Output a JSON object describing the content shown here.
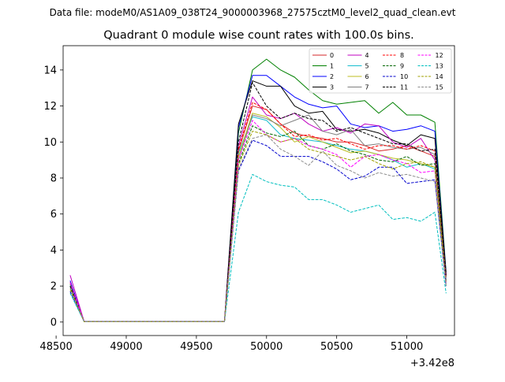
{
  "figure": {
    "suptitle": "Data file: modeM0/AS1A09_038T24_9000003968_27575cztM0_level2_quad_clean.evt"
  },
  "chart_data": {
    "type": "line",
    "title": "Quadrant 0 module wise count rates with 100.0s bins.",
    "xlabel": "",
    "ylabel": "",
    "x_offset_label": "+3.42e8",
    "xlim": [
      48550,
      51340
    ],
    "ylim": [
      -0.75,
      15.35
    ],
    "x_ticks": [
      48500,
      49000,
      49500,
      50000,
      50500,
      51000
    ],
    "x_tick_labels": [
      "48500",
      "49000",
      "49500",
      "50000",
      "50500",
      "51000"
    ],
    "y_ticks": [
      0,
      2,
      4,
      6,
      8,
      10,
      12,
      14
    ],
    "y_tick_labels": [
      "0",
      "2",
      "4",
      "6",
      "8",
      "10",
      "12",
      "14"
    ],
    "grid": false,
    "legend_position": "top-right",
    "x": [
      48600,
      48700,
      48800,
      48900,
      49000,
      49100,
      49200,
      49300,
      49400,
      49500,
      49600,
      49700,
      49800,
      49900,
      50000,
      50100,
      50200,
      50300,
      50400,
      50500,
      50600,
      50700,
      50800,
      50900,
      51000,
      51100,
      51200,
      51280
    ],
    "series": [
      {
        "name": "0",
        "color": "#d62728",
        "dashed": false,
        "values": [
          2.2,
          0.02,
          0.02,
          0.02,
          0.02,
          0.02,
          0.02,
          0.02,
          0.02,
          0.02,
          0.02,
          0.02,
          9.5,
          12.0,
          11.8,
          11.0,
          10.5,
          10.3,
          10.2,
          10.0,
          10.0,
          9.8,
          9.5,
          9.6,
          9.8,
          9.5,
          9.2,
          2.5
        ]
      },
      {
        "name": "1",
        "color": "#008000",
        "dashed": false,
        "values": [
          2.1,
          0.02,
          0.02,
          0.02,
          0.02,
          0.02,
          0.02,
          0.02,
          0.02,
          0.02,
          0.02,
          0.02,
          10.5,
          14.0,
          14.6,
          14.0,
          13.6,
          12.9,
          12.3,
          12.1,
          12.2,
          12.3,
          11.6,
          12.2,
          11.5,
          11.5,
          11.1,
          2.8
        ]
      },
      {
        "name": "2",
        "color": "#0000ff",
        "dashed": false,
        "values": [
          2.3,
          0.02,
          0.02,
          0.02,
          0.02,
          0.02,
          0.02,
          0.02,
          0.02,
          0.02,
          0.02,
          0.02,
          10.8,
          13.7,
          13.7,
          13.1,
          12.5,
          12.1,
          11.9,
          12.0,
          11.0,
          10.8,
          10.9,
          10.6,
          10.7,
          10.9,
          10.6,
          2.7
        ]
      },
      {
        "name": "3",
        "color": "#000000",
        "dashed": false,
        "values": [
          2.0,
          0.02,
          0.02,
          0.02,
          0.02,
          0.02,
          0.02,
          0.02,
          0.02,
          0.02,
          0.02,
          0.02,
          11.0,
          13.4,
          13.1,
          13.1,
          12.0,
          11.6,
          11.7,
          10.7,
          10.6,
          10.7,
          10.5,
          10.1,
          9.8,
          10.4,
          10.2,
          2.7
        ]
      },
      {
        "name": "4",
        "color": "#c000c0",
        "dashed": false,
        "values": [
          2.6,
          0.02,
          0.02,
          0.02,
          0.02,
          0.02,
          0.02,
          0.02,
          0.02,
          0.02,
          0.02,
          0.02,
          9.8,
          12.5,
          11.5,
          11.3,
          11.6,
          11.0,
          10.6,
          10.8,
          10.5,
          11.0,
          10.9,
          10.0,
          9.7,
          10.2,
          9.0,
          2.6
        ]
      },
      {
        "name": "5",
        "color": "#17becf",
        "dashed": false,
        "values": [
          2.0,
          0.02,
          0.02,
          0.02,
          0.02,
          0.02,
          0.02,
          0.02,
          0.02,
          0.02,
          0.02,
          0.02,
          9.4,
          11.4,
          11.2,
          10.4,
          10.2,
          10.1,
          10.0,
          9.8,
          9.6,
          9.5,
          9.3,
          9.0,
          8.6,
          8.8,
          8.5,
          2.3
        ]
      },
      {
        "name": "6",
        "color": "#bcbd22",
        "dashed": false,
        "values": [
          1.9,
          0.02,
          0.02,
          0.02,
          0.02,
          0.02,
          0.02,
          0.02,
          0.02,
          0.02,
          0.02,
          0.02,
          9.2,
          11.6,
          11.4,
          10.8,
          10.0,
          10.3,
          10.0,
          9.7,
          9.4,
          9.5,
          9.3,
          9.1,
          9.0,
          8.8,
          8.6,
          2.2
        ]
      },
      {
        "name": "7",
        "color": "#7f7f7f",
        "dashed": false,
        "values": [
          2.1,
          0.02,
          0.02,
          0.02,
          0.02,
          0.02,
          0.02,
          0.02,
          0.02,
          0.02,
          0.02,
          0.02,
          9.0,
          11.5,
          11.3,
          10.9,
          11.2,
          11.5,
          10.6,
          10.4,
          10.7,
          9.8,
          9.9,
          9.7,
          9.6,
          9.7,
          9.3,
          2.4
        ]
      },
      {
        "name": "8",
        "color": "#ff0000",
        "dashed": true,
        "values": [
          2.2,
          0.02,
          0.02,
          0.02,
          0.02,
          0.02,
          0.02,
          0.02,
          0.02,
          0.02,
          0.02,
          0.02,
          9.6,
          12.2,
          11.8,
          11.0,
          10.3,
          10.4,
          10.1,
          10.2,
          9.9,
          9.6,
          9.8,
          9.8,
          9.6,
          9.8,
          9.5,
          2.5
        ]
      },
      {
        "name": "9",
        "color": "#006400",
        "dashed": true,
        "values": [
          2.0,
          0.02,
          0.02,
          0.02,
          0.02,
          0.02,
          0.02,
          0.02,
          0.02,
          0.02,
          0.02,
          0.02,
          8.8,
          10.9,
          10.5,
          10.3,
          10.6,
          9.8,
          9.6,
          9.9,
          9.5,
          9.3,
          9.0,
          8.9,
          9.2,
          8.7,
          8.8,
          2.3
        ]
      },
      {
        "name": "10",
        "color": "#0000cd",
        "dashed": true,
        "values": [
          1.7,
          0.02,
          0.02,
          0.02,
          0.02,
          0.02,
          0.02,
          0.02,
          0.02,
          0.02,
          0.02,
          0.02,
          8.4,
          10.1,
          9.8,
          9.2,
          9.2,
          9.2,
          8.9,
          8.5,
          7.9,
          8.1,
          8.6,
          8.6,
          7.7,
          7.8,
          7.9,
          2.0
        ]
      },
      {
        "name": "11",
        "color": "#000000",
        "dashed": true,
        "values": [
          2.0,
          0.02,
          0.02,
          0.02,
          0.02,
          0.02,
          0.02,
          0.02,
          0.02,
          0.02,
          0.02,
          0.02,
          10.0,
          13.3,
          12.0,
          11.3,
          11.6,
          11.3,
          11.2,
          10.6,
          10.8,
          10.5,
          10.2,
          9.9,
          9.9,
          9.5,
          9.6,
          2.6
        ]
      },
      {
        "name": "12",
        "color": "#ff00ff",
        "dashed": true,
        "values": [
          2.2,
          0.02,
          0.02,
          0.02,
          0.02,
          0.02,
          0.02,
          0.02,
          0.02,
          0.02,
          0.02,
          0.02,
          9.0,
          11.2,
          10.4,
          10.0,
          10.2,
          9.8,
          9.6,
          9.3,
          8.6,
          9.2,
          9.3,
          9.0,
          8.8,
          8.3,
          8.4,
          2.2
        ]
      },
      {
        "name": "13",
        "color": "#00bfbf",
        "dashed": true,
        "values": [
          1.6,
          0.02,
          0.02,
          0.02,
          0.02,
          0.02,
          0.02,
          0.02,
          0.02,
          0.02,
          0.02,
          0.02,
          6.1,
          8.2,
          7.8,
          7.6,
          7.5,
          6.8,
          6.8,
          6.5,
          6.1,
          6.3,
          6.5,
          5.7,
          5.8,
          5.6,
          6.1,
          1.6
        ]
      },
      {
        "name": "14",
        "color": "#a0a000",
        "dashed": true,
        "values": [
          1.8,
          0.02,
          0.02,
          0.02,
          0.02,
          0.02,
          0.02,
          0.02,
          0.02,
          0.02,
          0.02,
          0.02,
          8.7,
          10.6,
          10.4,
          10.0,
          10.2,
          9.6,
          9.4,
          9.2,
          9.0,
          9.2,
          8.8,
          8.5,
          8.8,
          8.9,
          8.6,
          2.1
        ]
      },
      {
        "name": "15",
        "color": "#8c8c8c",
        "dashed": true,
        "values": [
          1.9,
          0.02,
          0.02,
          0.02,
          0.02,
          0.02,
          0.02,
          0.02,
          0.02,
          0.02,
          0.02,
          0.02,
          8.5,
          10.2,
          10.4,
          9.6,
          9.2,
          8.7,
          9.5,
          8.7,
          8.4,
          8.0,
          8.3,
          8.1,
          8.2,
          8.0,
          7.8,
          2.0
        ]
      }
    ]
  }
}
